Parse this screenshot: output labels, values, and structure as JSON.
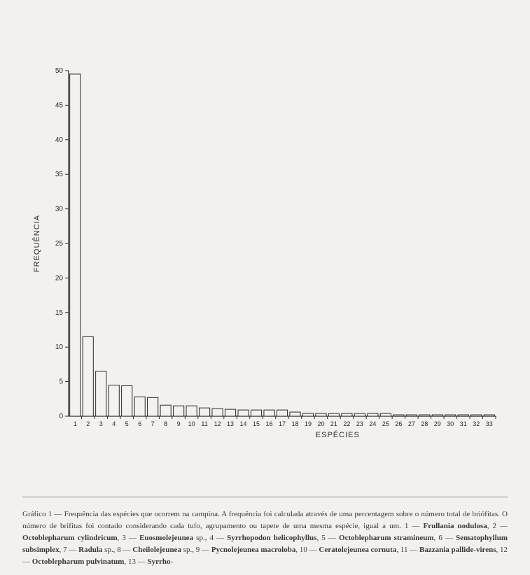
{
  "chart": {
    "type": "bar",
    "y_axis_title": "FREQUÊNCIA",
    "y_unit_label": "%",
    "x_axis_title": "ESPÉCIES",
    "categories": [
      "1",
      "2",
      "3",
      "4",
      "5",
      "6",
      "7",
      "8",
      "9",
      "10",
      "11",
      "12",
      "13",
      "14",
      "15",
      "16",
      "17",
      "18",
      "19",
      "20",
      "21",
      "22",
      "23",
      "24",
      "25",
      "26",
      "27",
      "28",
      "29",
      "30",
      "31",
      "32",
      "33"
    ],
    "values": [
      49.5,
      11.5,
      6.5,
      4.5,
      4.4,
      2.8,
      2.7,
      1.6,
      1.5,
      1.5,
      1.2,
      1.1,
      1.0,
      0.9,
      0.9,
      0.9,
      0.9,
      0.6,
      0.4,
      0.4,
      0.4,
      0.4,
      0.4,
      0.4,
      0.4,
      0.2,
      0.2,
      0.2,
      0.2,
      0.2,
      0.2,
      0.2,
      0.2
    ],
    "ylim": [
      0,
      50
    ],
    "ytick_step": 5,
    "bar_fill": "#f4f2ee",
    "bar_stroke": "#2a2a2a",
    "axis_color": "#2a2a2a",
    "tick_label_fontsize": 10,
    "axis_title_fontsize": 11,
    "background_color": "#f3f1ed",
    "bar_stroke_width": 1,
    "axis_stroke_width": 1.3
  },
  "caption": {
    "lead": "Gráfico 1 — Frequência das espécies que ocorrem na campina. A frequência foi calculada através de uma percentagem sobre o número total de briófitas. O número de brifitas foi contado considerando cada tufo, agrupamento ou tapete de uma mesma espécie, igual a um. ",
    "species": [
      {
        "n": "1",
        "name": "Frullania nodulosa"
      },
      {
        "n": "2",
        "name": "Octoblepharum cylindricum"
      },
      {
        "n": "3",
        "name": "Euosmolejeunea",
        "suffix": " sp."
      },
      {
        "n": "4",
        "name": "Syrrhopodon helicophyllus"
      },
      {
        "n": "5",
        "name": "Octoblepharum stramineum"
      },
      {
        "n": "6",
        "name": "Sematophyllum subsimplex"
      },
      {
        "n": "7",
        "name": "Radula",
        "suffix": " sp."
      },
      {
        "n": "8",
        "name": "Cheilolejeunea",
        "suffix": " sp."
      },
      {
        "n": "9",
        "name": "Pycnolejeunea macroloba"
      },
      {
        "n": "10",
        "name": "Ceratolejeunea cornuta"
      },
      {
        "n": "11",
        "name": "Bazzania pallide-virens"
      },
      {
        "n": "12",
        "name": "Octoblepharum pulvinatum"
      },
      {
        "n": "13",
        "name": "Syrrho-"
      }
    ]
  }
}
